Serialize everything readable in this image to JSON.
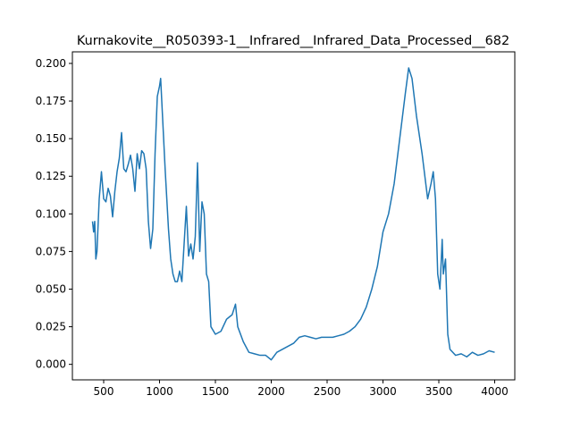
{
  "chart_data": {
    "type": "line",
    "title": "Kurnakovite__R050393-1__Infrared__Infrared_Data_Processed__682",
    "x": [
      400,
      410,
      420,
      430,
      440,
      460,
      480,
      500,
      520,
      540,
      560,
      580,
      600,
      620,
      640,
      660,
      680,
      700,
      720,
      740,
      760,
      780,
      800,
      820,
      840,
      860,
      880,
      900,
      920,
      940,
      960,
      980,
      1000,
      1010,
      1030,
      1050,
      1080,
      1100,
      1120,
      1140,
      1160,
      1180,
      1200,
      1220,
      1240,
      1260,
      1280,
      1300,
      1320,
      1340,
      1360,
      1380,
      1400,
      1420,
      1440,
      1460,
      1500,
      1550,
      1600,
      1650,
      1680,
      1700,
      1750,
      1800,
      1850,
      1900,
      1950,
      2000,
      2050,
      2100,
      2150,
      2200,
      2250,
      2300,
      2350,
      2400,
      2450,
      2500,
      2550,
      2600,
      2650,
      2700,
      2750,
      2800,
      2850,
      2900,
      2950,
      3000,
      3050,
      3100,
      3150,
      3200,
      3230,
      3260,
      3300,
      3350,
      3400,
      3430,
      3450,
      3470,
      3490,
      3510,
      3530,
      3540,
      3560,
      3580,
      3600,
      3650,
      3700,
      3750,
      3800,
      3850,
      3900,
      3950,
      4000
    ],
    "series": [
      {
        "color": "#1f77b4",
        "values": [
          0.095,
          0.088,
          0.095,
          0.07,
          0.075,
          0.11,
          0.128,
          0.11,
          0.108,
          0.117,
          0.112,
          0.098,
          0.115,
          0.128,
          0.137,
          0.154,
          0.13,
          0.128,
          0.133,
          0.139,
          0.13,
          0.115,
          0.14,
          0.13,
          0.142,
          0.14,
          0.13,
          0.095,
          0.077,
          0.09,
          0.14,
          0.178,
          0.185,
          0.19,
          0.16,
          0.13,
          0.09,
          0.07,
          0.06,
          0.055,
          0.055,
          0.062,
          0.055,
          0.08,
          0.105,
          0.072,
          0.08,
          0.07,
          0.085,
          0.134,
          0.075,
          0.108,
          0.1,
          0.06,
          0.055,
          0.025,
          0.02,
          0.022,
          0.03,
          0.033,
          0.04,
          0.025,
          0.015,
          0.008,
          0.007,
          0.006,
          0.006,
          0.003,
          0.008,
          0.01,
          0.012,
          0.014,
          0.018,
          0.019,
          0.018,
          0.017,
          0.018,
          0.018,
          0.018,
          0.019,
          0.02,
          0.022,
          0.025,
          0.03,
          0.038,
          0.05,
          0.065,
          0.088,
          0.1,
          0.12,
          0.15,
          0.18,
          0.197,
          0.19,
          0.165,
          0.14,
          0.11,
          0.12,
          0.128,
          0.11,
          0.06,
          0.05,
          0.083,
          0.06,
          0.07,
          0.02,
          0.01,
          0.006,
          0.007,
          0.005,
          0.008,
          0.006,
          0.007,
          0.009,
          0.008
        ]
      }
    ],
    "xlim": [
      220,
      4180
    ],
    "ylim": [
      -0.0103,
      0.2077
    ],
    "xticks": [
      500,
      1000,
      1500,
      2000,
      2500,
      3000,
      3500,
      4000
    ],
    "yticks": [
      {
        "value": 0,
        "label": "0.000"
      },
      {
        "value": 0.025,
        "label": "0.025"
      },
      {
        "value": 0.05,
        "label": "0.050"
      },
      {
        "value": 0.075,
        "label": "0.075"
      },
      {
        "value": 0.1,
        "label": "0.100"
      },
      {
        "value": 0.125,
        "label": "0.125"
      },
      {
        "value": 0.15,
        "label": "0.150"
      },
      {
        "value": 0.175,
        "label": "0.175"
      },
      {
        "value": 0.2,
        "label": "0.200"
      }
    ]
  }
}
